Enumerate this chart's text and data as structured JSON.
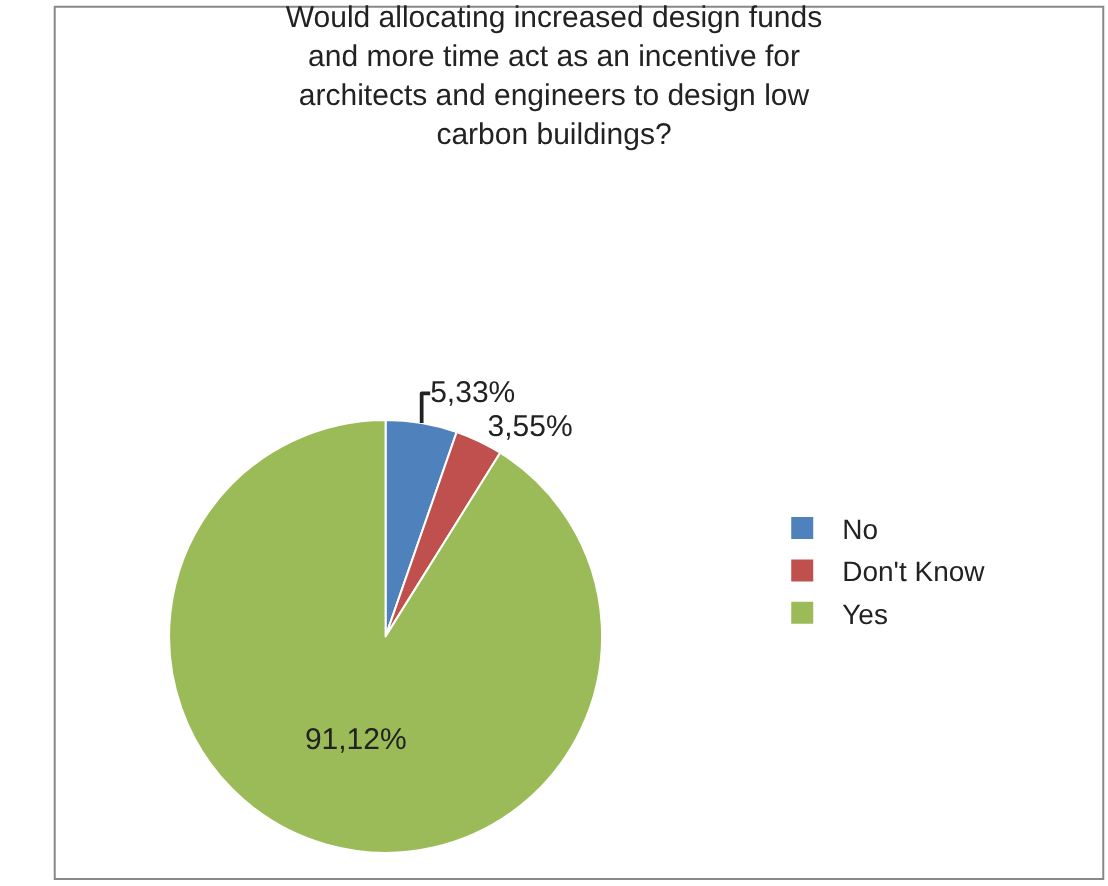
{
  "chart_data": {
    "type": "pie",
    "title": "Would allocating increased design funds and more time act as an incentive for architects and engineers to design low carbon buildings?",
    "categories": [
      "No",
      "Don't Know",
      "Yes"
    ],
    "values": [
      5.33,
      3.55,
      91.12
    ],
    "colors": [
      "#4f81bd",
      "#c0504d",
      "#9bbb59"
    ],
    "value_labels": [
      "5,33%",
      "3,55%",
      "91,12%"
    ],
    "legend": "right"
  }
}
